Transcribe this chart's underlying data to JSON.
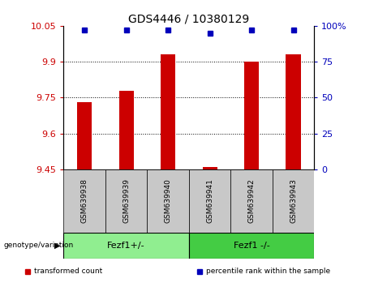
{
  "title": "GDS4446 / 10380129",
  "samples": [
    "GSM639938",
    "GSM639939",
    "GSM639940",
    "GSM639941",
    "GSM639942",
    "GSM639943"
  ],
  "transformed_counts": [
    9.73,
    9.78,
    9.93,
    9.46,
    9.9,
    9.93
  ],
  "percentile_ranks": [
    97,
    97,
    97,
    95,
    97,
    97
  ],
  "ylim_left": [
    9.45,
    10.05
  ],
  "yticks_left": [
    9.45,
    9.6,
    9.75,
    9.9,
    10.05
  ],
  "ytick_labels_left": [
    "9.45",
    "9.6",
    "9.75",
    "9.9",
    "10.05"
  ],
  "yticks_right": [
    0,
    25,
    50,
    75,
    100
  ],
  "ytick_labels_right": [
    "0",
    "25",
    "50",
    "75",
    "100%"
  ],
  "groups": [
    {
      "label": "Fezf1+/-",
      "indices": [
        0,
        1,
        2
      ],
      "color": "#90EE90"
    },
    {
      "label": "Fezf1 -/-",
      "indices": [
        3,
        4,
        5
      ],
      "color": "#44CC44"
    }
  ],
  "bar_color": "#CC0000",
  "dot_color": "#0000BB",
  "bar_width": 0.35,
  "background_color": "#ffffff",
  "genotype_label": "genotype/variation",
  "legend_items": [
    {
      "color": "#CC0000",
      "label": "transformed count"
    },
    {
      "color": "#0000BB",
      "label": "percentile rank within the sample"
    }
  ],
  "tick_color_left": "#CC0000",
  "tick_color_right": "#0000BB",
  "dotted_yticks": [
    9.6,
    9.75,
    9.9
  ],
  "sample_box_color": "#C8C8C8",
  "group1_color": "#90EE90",
  "group2_color": "#44CC44"
}
